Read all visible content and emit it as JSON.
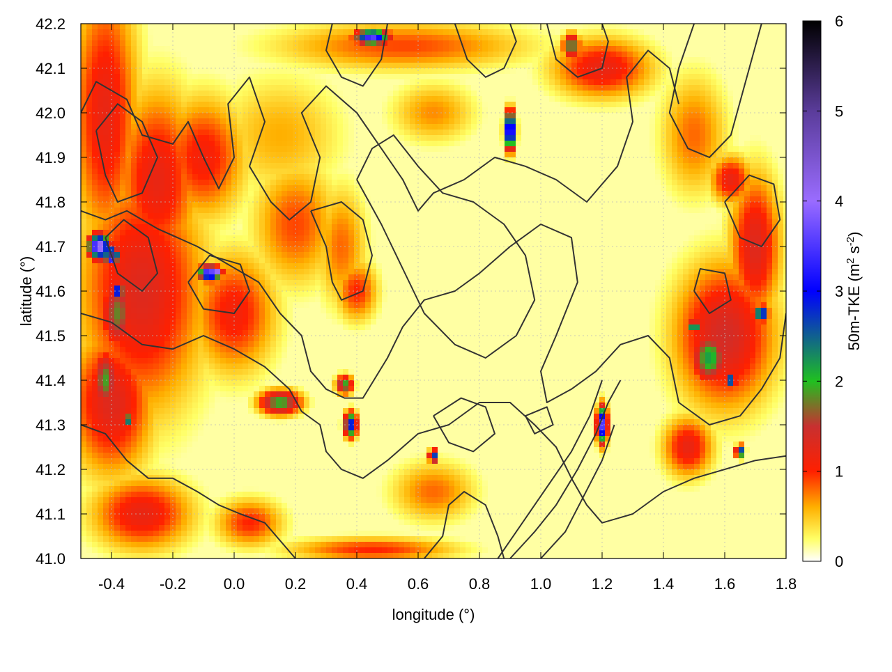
{
  "chart_data": {
    "type": "heatmap",
    "title": "",
    "xlabel": "longitude (°)",
    "ylabel": "latitude (°)",
    "colorbar_label": {
      "base": "50m-TKE (m",
      "sup1": "2",
      "mid": " s",
      "sup2": "-2",
      "end": ")"
    },
    "xlim": [
      -0.5,
      1.8
    ],
    "ylim": [
      41.0,
      42.2
    ],
    "zlim": [
      0,
      6
    ],
    "x_ticks": [
      -0.4,
      -0.2,
      0.0,
      0.2,
      0.4,
      0.6,
      0.8,
      1.0,
      1.2,
      1.4,
      1.6,
      1.8
    ],
    "x_tick_labels": [
      "-0.4",
      "-0.2",
      "0.0",
      "0.2",
      "0.4",
      "0.6",
      "0.8",
      "1.0",
      "1.2",
      "1.4",
      "1.6",
      "1.8"
    ],
    "y_ticks": [
      41.0,
      41.1,
      41.2,
      41.3,
      41.4,
      41.5,
      41.6,
      41.7,
      41.8,
      41.9,
      42.0,
      42.1,
      42.2
    ],
    "y_tick_labels": [
      "41.0",
      "41.1",
      "41.2",
      "41.3",
      "41.4",
      "41.5",
      "41.6",
      "41.7",
      "41.8",
      "41.9",
      "42.0",
      "42.1",
      "42.2"
    ],
    "z_ticks": [
      0,
      1,
      2,
      3,
      4,
      5,
      6
    ],
    "z_tick_labels": [
      "0",
      "1",
      "2",
      "3",
      "4",
      "5",
      "6"
    ],
    "grid": true,
    "colormap": [
      {
        "value": 0.0,
        "color": "#ffffff"
      },
      {
        "value": 0.25,
        "color": "#ffff66"
      },
      {
        "value": 0.6,
        "color": "#ffb000"
      },
      {
        "value": 1.0,
        "color": "#ff2000"
      },
      {
        "value": 1.5,
        "color": "#c83030"
      },
      {
        "value": 2.0,
        "color": "#20c020"
      },
      {
        "value": 3.0,
        "color": "#0000ff"
      },
      {
        "value": 4.0,
        "color": "#9a6cff"
      },
      {
        "value": 5.0,
        "color": "#5a3c9a"
      },
      {
        "value": 6.0,
        "color": "#000000"
      }
    ],
    "contour_color": "#333333",
    "field_hotspots": [
      {
        "lon": -0.42,
        "lat": 42.0,
        "tke": 1.2,
        "sx": 0.08,
        "sy": 0.22
      },
      {
        "lon": -0.3,
        "lat": 41.6,
        "tke": 1.3,
        "sx": 0.15,
        "sy": 0.2
      },
      {
        "lon": -0.25,
        "lat": 41.85,
        "tke": 1.2,
        "sx": 0.1,
        "sy": 0.15
      },
      {
        "lon": -0.1,
        "lat": 41.9,
        "tke": 1.1,
        "sx": 0.1,
        "sy": 0.1
      },
      {
        "lon": -0.4,
        "lat": 41.35,
        "tke": 1.3,
        "sx": 0.1,
        "sy": 0.12
      },
      {
        "lon": -0.38,
        "lat": 41.55,
        "tke": 1.8,
        "sx": 0.04,
        "sy": 0.06
      },
      {
        "lon": -0.42,
        "lat": 41.4,
        "tke": 1.9,
        "sx": 0.03,
        "sy": 0.05
      },
      {
        "lon": -0.44,
        "lat": 41.7,
        "tke": 4.3,
        "sx": 0.025,
        "sy": 0.02
      },
      {
        "lon": -0.4,
        "lat": 41.68,
        "tke": 5.2,
        "sx": 0.015,
        "sy": 0.012
      },
      {
        "lon": -0.08,
        "lat": 41.64,
        "tke": 4.0,
        "sx": 0.025,
        "sy": 0.012
      },
      {
        "lon": -0.05,
        "lat": 41.64,
        "tke": 5.8,
        "sx": 0.008,
        "sy": 0.006
      },
      {
        "lon": -0.38,
        "lat": 41.6,
        "tke": 3.5,
        "sx": 0.015,
        "sy": 0.01
      },
      {
        "lon": -0.35,
        "lat": 41.31,
        "tke": 2.8,
        "sx": 0.01,
        "sy": 0.01
      },
      {
        "lon": 0.0,
        "lat": 41.55,
        "tke": 1.1,
        "sx": 0.1,
        "sy": 0.1
      },
      {
        "lon": 0.2,
        "lat": 41.75,
        "tke": 0.9,
        "sx": 0.1,
        "sy": 0.1
      },
      {
        "lon": 0.35,
        "lat": 41.7,
        "tke": 0.8,
        "sx": 0.06,
        "sy": 0.1
      },
      {
        "lon": 0.4,
        "lat": 41.6,
        "tke": 1.0,
        "sx": 0.05,
        "sy": 0.05
      },
      {
        "lon": 0.15,
        "lat": 41.95,
        "tke": 0.6,
        "sx": 0.15,
        "sy": 0.1
      },
      {
        "lon": -0.3,
        "lat": 41.1,
        "tke": 1.2,
        "sx": 0.12,
        "sy": 0.06
      },
      {
        "lon": 0.05,
        "lat": 41.08,
        "tke": 1.0,
        "sx": 0.08,
        "sy": 0.04
      },
      {
        "lon": 0.55,
        "lat": 42.15,
        "tke": 0.9,
        "sx": 0.3,
        "sy": 0.04
      },
      {
        "lon": 0.45,
        "lat": 42.17,
        "tke": 3.6,
        "sx": 0.04,
        "sy": 0.012
      },
      {
        "lon": 0.9,
        "lat": 41.96,
        "tke": 4.2,
        "sx": 0.012,
        "sy": 0.03
      },
      {
        "lon": 1.2,
        "lat": 42.1,
        "tke": 1.2,
        "sx": 0.12,
        "sy": 0.05
      },
      {
        "lon": 1.1,
        "lat": 42.15,
        "tke": 2.0,
        "sx": 0.02,
        "sy": 0.02
      },
      {
        "lon": 1.7,
        "lat": 41.7,
        "tke": 1.3,
        "sx": 0.06,
        "sy": 0.12
      },
      {
        "lon": 1.6,
        "lat": 41.5,
        "tke": 1.4,
        "sx": 0.12,
        "sy": 0.12
      },
      {
        "lon": 1.55,
        "lat": 41.45,
        "tke": 2.2,
        "sx": 0.04,
        "sy": 0.04
      },
      {
        "lon": 1.72,
        "lat": 41.55,
        "tke": 3.5,
        "sx": 0.015,
        "sy": 0.012
      },
      {
        "lon": 1.5,
        "lat": 41.52,
        "tke": 3.0,
        "sx": 0.012,
        "sy": 0.01
      },
      {
        "lon": 1.62,
        "lat": 41.4,
        "tke": 3.0,
        "sx": 0.012,
        "sy": 0.012
      },
      {
        "lon": 1.48,
        "lat": 41.25,
        "tke": 1.2,
        "sx": 0.06,
        "sy": 0.05
      },
      {
        "lon": 1.65,
        "lat": 41.24,
        "tke": 3.1,
        "sx": 0.01,
        "sy": 0.01
      },
      {
        "lon": 1.2,
        "lat": 41.3,
        "tke": 3.6,
        "sx": 0.012,
        "sy": 0.03
      },
      {
        "lon": 0.38,
        "lat": 41.3,
        "tke": 3.0,
        "sx": 0.015,
        "sy": 0.02
      },
      {
        "lon": 0.36,
        "lat": 41.39,
        "tke": 2.0,
        "sx": 0.02,
        "sy": 0.015
      },
      {
        "lon": 0.65,
        "lat": 41.23,
        "tke": 3.0,
        "sx": 0.01,
        "sy": 0.01
      },
      {
        "lon": 0.15,
        "lat": 41.35,
        "tke": 2.0,
        "sx": 0.05,
        "sy": 0.02
      },
      {
        "lon": 0.65,
        "lat": 41.15,
        "tke": 0.8,
        "sx": 0.1,
        "sy": 0.05
      },
      {
        "lon": 0.45,
        "lat": 41.02,
        "tke": 1.0,
        "sx": 0.2,
        "sy": 0.02
      },
      {
        "lon": 1.5,
        "lat": 41.95,
        "tke": 0.8,
        "sx": 0.08,
        "sy": 0.1
      },
      {
        "lon": 1.62,
        "lat": 41.85,
        "tke": 1.2,
        "sx": 0.05,
        "sy": 0.04
      },
      {
        "lon": 0.65,
        "lat": 42.0,
        "tke": 0.7,
        "sx": 0.1,
        "sy": 0.05
      }
    ],
    "contours": [
      [
        [
          -0.5,
          42.0
        ],
        [
          -0.45,
          42.07
        ],
        [
          -0.35,
          42.03
        ],
        [
          -0.3,
          41.95
        ],
        [
          -0.2,
          41.93
        ],
        [
          -0.15,
          41.98
        ],
        [
          -0.1,
          41.9
        ],
        [
          -0.05,
          41.83
        ],
        [
          0.0,
          41.9
        ],
        [
          -0.02,
          42.02
        ],
        [
          0.05,
          42.08
        ],
        [
          0.1,
          41.98
        ],
        [
          0.05,
          41.88
        ],
        [
          0.12,
          41.8
        ],
        [
          0.18,
          41.76
        ],
        [
          0.25,
          41.8
        ],
        [
          0.28,
          41.9
        ],
        [
          0.22,
          42.0
        ],
        [
          0.3,
          42.06
        ],
        [
          0.4,
          42.0
        ],
        [
          0.48,
          41.92
        ],
        [
          0.55,
          41.85
        ],
        [
          0.6,
          41.78
        ],
        [
          0.65,
          41.82
        ],
        [
          0.75,
          41.85
        ],
        [
          0.85,
          41.9
        ],
        [
          0.95,
          41.88
        ],
        [
          1.05,
          41.85
        ],
        [
          1.15,
          41.8
        ],
        [
          1.25,
          41.88
        ],
        [
          1.3,
          41.98
        ],
        [
          1.28,
          42.08
        ],
        [
          1.35,
          42.14
        ],
        [
          1.42,
          42.1
        ],
        [
          1.45,
          42.02
        ]
      ],
      [
        [
          -0.5,
          41.78
        ],
        [
          -0.42,
          41.76
        ],
        [
          -0.35,
          41.78
        ],
        [
          -0.25,
          41.74
        ],
        [
          -0.12,
          41.7
        ],
        [
          -0.02,
          41.66
        ],
        [
          0.08,
          41.62
        ],
        [
          0.15,
          41.55
        ],
        [
          0.22,
          41.5
        ],
        [
          0.25,
          41.42
        ],
        [
          0.3,
          41.38
        ],
        [
          0.36,
          41.36
        ],
        [
          0.42,
          41.36
        ],
        [
          0.5,
          41.45
        ],
        [
          0.55,
          41.52
        ],
        [
          0.62,
          41.58
        ],
        [
          0.72,
          41.6
        ],
        [
          0.8,
          41.64
        ],
        [
          0.9,
          41.7
        ],
        [
          1.0,
          41.75
        ],
        [
          1.1,
          41.72
        ],
        [
          1.12,
          41.62
        ],
        [
          1.05,
          41.5
        ],
        [
          1.0,
          41.42
        ],
        [
          1.02,
          41.35
        ],
        [
          1.1,
          41.38
        ],
        [
          1.18,
          41.42
        ],
        [
          1.26,
          41.48
        ],
        [
          1.35,
          41.5
        ],
        [
          1.42,
          41.45
        ],
        [
          1.45,
          41.35
        ],
        [
          1.55,
          41.3
        ],
        [
          1.65,
          41.32
        ],
        [
          1.72,
          41.38
        ],
        [
          1.78,
          41.45
        ],
        [
          1.8,
          41.55
        ]
      ],
      [
        [
          -0.5,
          41.55
        ],
        [
          -0.4,
          41.53
        ],
        [
          -0.3,
          41.48
        ],
        [
          -0.2,
          41.47
        ],
        [
          -0.1,
          41.5
        ],
        [
          0.0,
          41.47
        ],
        [
          0.1,
          41.43
        ],
        [
          0.18,
          41.38
        ],
        [
          0.22,
          41.33
        ],
        [
          0.28,
          41.3
        ],
        [
          0.3,
          41.24
        ],
        [
          0.35,
          41.2
        ],
        [
          0.42,
          41.18
        ],
        [
          0.5,
          41.22
        ],
        [
          0.6,
          41.28
        ],
        [
          0.7,
          41.3
        ],
        [
          0.8,
          41.35
        ],
        [
          0.9,
          41.35
        ],
        [
          0.98,
          41.3
        ],
        [
          1.05,
          41.25
        ],
        [
          1.1,
          41.18
        ],
        [
          1.15,
          41.12
        ],
        [
          1.2,
          41.08
        ],
        [
          1.3,
          41.1
        ],
        [
          1.4,
          41.15
        ],
        [
          1.5,
          41.18
        ],
        [
          1.6,
          41.2
        ],
        [
          1.7,
          41.22
        ],
        [
          1.8,
          41.23
        ]
      ],
      [
        [
          -0.5,
          41.3
        ],
        [
          -0.42,
          41.28
        ],
        [
          -0.35,
          41.22
        ],
        [
          -0.28,
          41.18
        ],
        [
          -0.2,
          41.18
        ],
        [
          -0.12,
          41.15
        ],
        [
          -0.05,
          41.12
        ],
        [
          0.02,
          41.1
        ],
        [
          0.1,
          41.08
        ],
        [
          0.15,
          41.04
        ],
        [
          0.2,
          41.0
        ]
      ],
      [
        [
          0.62,
          41.0
        ],
        [
          0.68,
          41.05
        ],
        [
          0.7,
          41.12
        ],
        [
          0.75,
          41.15
        ],
        [
          0.82,
          41.12
        ],
        [
          0.86,
          41.05
        ],
        [
          0.88,
          41.0
        ]
      ],
      [
        [
          0.9,
          41.0
        ],
        [
          0.98,
          41.06
        ],
        [
          1.05,
          41.12
        ],
        [
          1.12,
          41.2
        ],
        [
          1.18,
          41.28
        ],
        [
          1.22,
          41.35
        ],
        [
          1.26,
          41.4
        ]
      ],
      [
        [
          0.86,
          41.0
        ],
        [
          0.94,
          41.08
        ],
        [
          1.02,
          41.16
        ],
        [
          1.1,
          41.24
        ],
        [
          1.16,
          41.32
        ],
        [
          1.2,
          41.4
        ]
      ],
      [
        [
          1.0,
          41.0
        ],
        [
          1.08,
          41.06
        ],
        [
          1.14,
          41.14
        ],
        [
          1.2,
          41.22
        ],
        [
          1.24,
          41.3
        ]
      ],
      [
        [
          0.4,
          41.85
        ],
        [
          0.48,
          41.75
        ],
        [
          0.55,
          41.65
        ],
        [
          0.62,
          41.55
        ],
        [
          0.72,
          41.48
        ],
        [
          0.82,
          41.45
        ],
        [
          0.92,
          41.5
        ],
        [
          0.98,
          41.58
        ],
        [
          0.95,
          41.68
        ],
        [
          0.88,
          41.75
        ],
        [
          0.78,
          41.8
        ],
        [
          0.68,
          41.82
        ],
        [
          0.6,
          41.88
        ],
        [
          0.52,
          41.95
        ],
        [
          0.45,
          41.92
        ],
        [
          0.4,
          41.85
        ]
      ],
      [
        [
          0.25,
          41.78
        ],
        [
          0.3,
          41.7
        ],
        [
          0.32,
          41.62
        ],
        [
          0.35,
          41.58
        ],
        [
          0.42,
          41.6
        ],
        [
          0.45,
          41.68
        ],
        [
          0.42,
          41.76
        ],
        [
          0.35,
          41.8
        ],
        [
          0.25,
          41.78
        ]
      ],
      [
        [
          -0.45,
          41.96
        ],
        [
          -0.42,
          41.86
        ],
        [
          -0.38,
          41.8
        ],
        [
          -0.3,
          41.82
        ],
        [
          -0.25,
          41.9
        ],
        [
          -0.3,
          41.98
        ],
        [
          -0.38,
          42.02
        ],
        [
          -0.45,
          41.96
        ]
      ],
      [
        [
          0.72,
          42.2
        ],
        [
          0.76,
          42.12
        ],
        [
          0.82,
          42.08
        ],
        [
          0.88,
          42.1
        ],
        [
          0.92,
          42.16
        ],
        [
          0.9,
          42.2
        ]
      ],
      [
        [
          0.5,
          42.2
        ],
        [
          0.48,
          42.12
        ],
        [
          0.42,
          42.06
        ],
        [
          0.35,
          42.08
        ],
        [
          0.3,
          42.14
        ],
        [
          0.32,
          42.2
        ]
      ],
      [
        [
          1.02,
          42.2
        ],
        [
          1.05,
          42.12
        ],
        [
          1.12,
          42.08
        ],
        [
          1.2,
          42.1
        ],
        [
          1.22,
          42.16
        ],
        [
          1.2,
          42.2
        ]
      ],
      [
        [
          1.5,
          42.2
        ],
        [
          1.45,
          42.1
        ],
        [
          1.42,
          42.0
        ],
        [
          1.48,
          41.92
        ],
        [
          1.55,
          41.9
        ],
        [
          1.62,
          41.95
        ],
        [
          1.66,
          42.05
        ],
        [
          1.7,
          42.15
        ],
        [
          1.72,
          42.2
        ]
      ],
      [
        [
          -0.15,
          41.62
        ],
        [
          -0.1,
          41.56
        ],
        [
          0.0,
          41.55
        ],
        [
          0.05,
          41.6
        ],
        [
          0.02,
          41.66
        ],
        [
          -0.08,
          41.68
        ],
        [
          -0.15,
          41.62
        ]
      ],
      [
        [
          -0.42,
          41.72
        ],
        [
          -0.38,
          41.64
        ],
        [
          -0.3,
          41.6
        ],
        [
          -0.25,
          41.64
        ],
        [
          -0.28,
          41.72
        ],
        [
          -0.36,
          41.76
        ],
        [
          -0.42,
          41.72
        ]
      ],
      [
        [
          0.65,
          41.32
        ],
        [
          0.7,
          41.26
        ],
        [
          0.78,
          41.24
        ],
        [
          0.85,
          41.28
        ],
        [
          0.82,
          41.34
        ],
        [
          0.74,
          41.36
        ],
        [
          0.65,
          41.32
        ]
      ],
      [
        [
          0.95,
          41.32
        ],
        [
          0.98,
          41.28
        ],
        [
          1.04,
          41.3
        ],
        [
          1.02,
          41.34
        ],
        [
          0.95,
          41.32
        ]
      ],
      [
        [
          1.5,
          41.6
        ],
        [
          1.55,
          41.55
        ],
        [
          1.62,
          41.58
        ],
        [
          1.6,
          41.64
        ],
        [
          1.52,
          41.65
        ],
        [
          1.5,
          41.6
        ]
      ],
      [
        [
          1.6,
          41.8
        ],
        [
          1.65,
          41.72
        ],
        [
          1.72,
          41.7
        ],
        [
          1.78,
          41.76
        ],
        [
          1.76,
          41.84
        ],
        [
          1.68,
          41.86
        ],
        [
          1.6,
          41.8
        ]
      ]
    ]
  }
}
